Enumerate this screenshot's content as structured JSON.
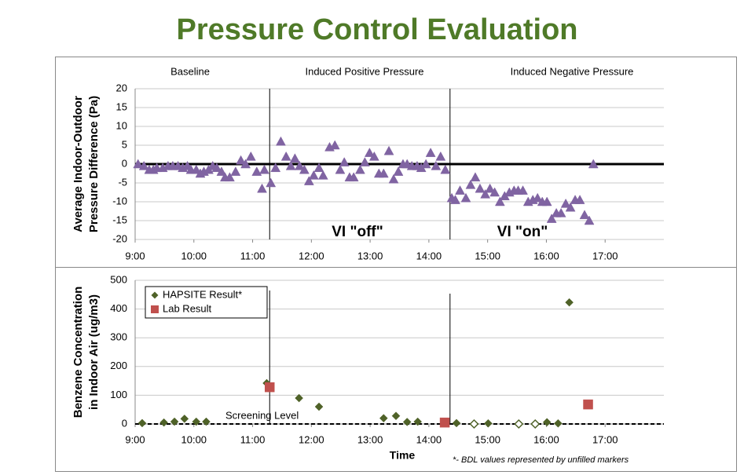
{
  "title": "Pressure Control Evaluation",
  "chart_data": [
    {
      "type": "scatter",
      "ylabel": [
        "Average Indoor-Outdoor",
        "Pressure Difference (Pa)"
      ],
      "section_labels": [
        "Baseline",
        "Induced Positive Pressure",
        "Induced Negative Pressure"
      ],
      "annotations": [
        "VI \"off\"",
        "VI \"on\""
      ],
      "vlines": [
        11.29,
        14.36
      ],
      "reference_line": 0,
      "xlim": [
        9,
        18
      ],
      "xticks": [
        {
          "value": 9,
          "label": "9:00"
        },
        {
          "value": 10,
          "label": "10:00"
        },
        {
          "value": 11,
          "label": "11:00"
        },
        {
          "value": 12,
          "label": "12:00"
        },
        {
          "value": 13,
          "label": "13:00"
        },
        {
          "value": 14,
          "label": "14:00"
        },
        {
          "value": 15,
          "label": "15:00"
        },
        {
          "value": 16,
          "label": "16:00"
        },
        {
          "value": 17,
          "label": "17:00"
        }
      ],
      "ylim": [
        -20,
        20
      ],
      "yticks": [
        -20,
        -15,
        -10,
        -5,
        0,
        5,
        10,
        15,
        20
      ],
      "grid": true,
      "series": [
        {
          "name": null,
          "marker": "triangle",
          "color": "#8064a2",
          "x": [
            9.05,
            9.15,
            9.24,
            9.31,
            9.37,
            9.47,
            9.56,
            9.64,
            9.73,
            9.81,
            9.89,
            9.95,
            10.04,
            10.11,
            10.17,
            10.25,
            10.32,
            10.39,
            10.47,
            10.53,
            10.61,
            10.71,
            10.8,
            10.88,
            10.97,
            11.07,
            11.16,
            11.2,
            11.31,
            11.39,
            11.48,
            11.57,
            11.65,
            11.72,
            11.8,
            11.88,
            11.96,
            12.04,
            12.13,
            12.2,
            12.31,
            12.4,
            12.49,
            12.56,
            12.65,
            12.72,
            12.83,
            12.91,
            12.99,
            13.07,
            13.15,
            13.23,
            13.32,
            13.4,
            13.48,
            13.56,
            13.63,
            13.71,
            13.8,
            13.87,
            13.95,
            14.03,
            14.12,
            14.2,
            14.28,
            14.39,
            14.45,
            14.53,
            14.63,
            14.71,
            14.79,
            14.87,
            14.96,
            15.04,
            15.12,
            15.21,
            15.29,
            15.37,
            15.45,
            15.52,
            15.6,
            15.69,
            15.77,
            15.85,
            15.93,
            16.01,
            16.09,
            16.17,
            16.25,
            16.33,
            16.41,
            16.49,
            16.57,
            16.65,
            16.73,
            16.8
          ],
          "values": [
            0,
            -0.5,
            -1.5,
            -1.5,
            -1,
            -1,
            -0.5,
            -0.5,
            -0.5,
            -1,
            -0.5,
            -1.5,
            -1.5,
            -2.5,
            -2,
            -1.5,
            -0.5,
            -1,
            -2,
            -3.5,
            -3.5,
            -2,
            1,
            0,
            2,
            -2,
            -6.5,
            -1.5,
            -5,
            -1,
            6,
            2,
            -0.5,
            1.5,
            -0.5,
            -1.5,
            -4.5,
            -3,
            -1,
            -3,
            4.5,
            5,
            -1.5,
            0.5,
            -3.5,
            -3.5,
            -1.5,
            0.5,
            3,
            2,
            -2.5,
            -2.5,
            3.5,
            -4,
            -2,
            0,
            0,
            -0.5,
            -0.5,
            -1,
            0,
            3,
            -0.5,
            2,
            -1.5,
            -9,
            -9.5,
            -7,
            -9,
            -5.5,
            -3.5,
            -6.5,
            -8,
            -6.5,
            -7.5,
            -10,
            -8.5,
            -7.5,
            -7,
            -7,
            -7,
            -10,
            -9.5,
            -9,
            -10,
            -10,
            -14.5,
            -13,
            -13,
            -10.5,
            -11.5,
            -9.5,
            -9.5,
            -13.5,
            -15,
            0
          ]
        }
      ]
    },
    {
      "type": "scatter",
      "ylabel": [
        "Benzene Concentration",
        "in Indoor Air (ug/m3)"
      ],
      "xlabel": "Time",
      "note": "*- BDL values represented  by unfilled markers",
      "screening_level": {
        "value": 0,
        "label": "Screening  Level"
      },
      "vlines": [
        11.29,
        14.36
      ],
      "xlim": [
        9,
        18
      ],
      "xticks": [
        {
          "value": 9,
          "label": "9:00"
        },
        {
          "value": 10,
          "label": "10:00"
        },
        {
          "value": 11,
          "label": "11:00"
        },
        {
          "value": 12,
          "label": "12:00"
        },
        {
          "value": 13,
          "label": "13:00"
        },
        {
          "value": 14,
          "label": "14:00"
        },
        {
          "value": 15,
          "label": "15:00"
        },
        {
          "value": 16,
          "label": "16:00"
        },
        {
          "value": 17,
          "label": "17:00"
        }
      ],
      "ylim": [
        0,
        500
      ],
      "yticks": [
        0,
        100,
        200,
        300,
        400,
        500
      ],
      "grid": true,
      "legend": "upper left",
      "series": [
        {
          "name": "HAPSITE Result*",
          "marker": "diamond",
          "color": "#4f6228",
          "x": [
            9.12,
            9.49,
            9.67,
            9.84,
            10.04,
            10.21,
            11.24,
            11.79,
            12.13,
            13.23,
            13.44,
            13.63,
            13.81,
            14.47,
            14.77,
            15.01,
            15.53,
            15.81,
            16.01,
            16.2,
            16.39
          ],
          "values": [
            3,
            5,
            8,
            18,
            8,
            8,
            142,
            90,
            60,
            20,
            28,
            7,
            8,
            3,
            0,
            2,
            0,
            0,
            6,
            2,
            423
          ],
          "filled": [
            true,
            true,
            true,
            true,
            true,
            true,
            true,
            true,
            true,
            true,
            true,
            true,
            true,
            true,
            false,
            true,
            false,
            false,
            true,
            true,
            true
          ]
        },
        {
          "name": "Lab Result",
          "marker": "square",
          "color": "#c0504d",
          "x": [
            11.29,
            14.27,
            16.71
          ],
          "values": [
            128,
            5,
            68
          ]
        }
      ]
    }
  ]
}
